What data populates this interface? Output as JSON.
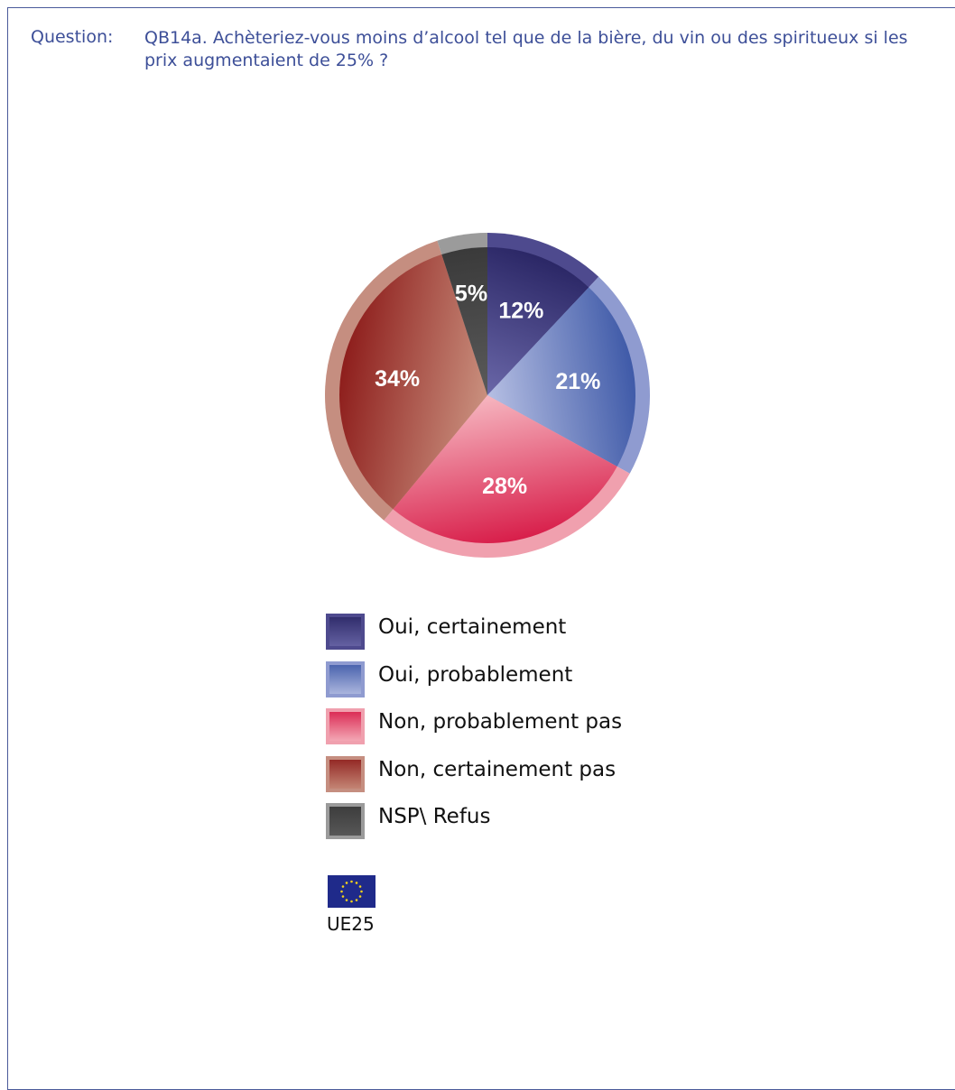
{
  "question": {
    "label": "Question:",
    "text": "QB14a. Achèteriez-vous moins d’alcool tel que de la bière, du vin ou des spiritueux si les prix augmentaient de 25% ?"
  },
  "chart_data": {
    "type": "pie",
    "unit": "%",
    "slices": [
      {
        "label": "Oui, certainement",
        "value": 12,
        "display": "12%",
        "colors": [
          "#2b2766",
          "#6a67a8",
          "#4e4a8e"
        ]
      },
      {
        "label": "Oui, probablement",
        "value": 21,
        "display": "21%",
        "colors": [
          "#3f5aa8",
          "#b6bfe3",
          "#8f9bd0"
        ]
      },
      {
        "label": "Non, probablement pas",
        "value": 28,
        "display": "28%",
        "colors": [
          "#d81e4a",
          "#f6b6c0",
          "#f0a0ae"
        ]
      },
      {
        "label": "Non, certainement pas",
        "value": 34,
        "display": "34%",
        "colors": [
          "#8e1e1c",
          "#c9907e",
          "#c58e80"
        ]
      },
      {
        "label": "NSP\\ Refus",
        "value": 5,
        "display": "5%",
        "colors": [
          "#3a3a3a",
          "#5a5a5a",
          "#9b9b9b"
        ]
      }
    ],
    "legend_position": "bottom"
  },
  "footer": {
    "region": "UE25"
  }
}
